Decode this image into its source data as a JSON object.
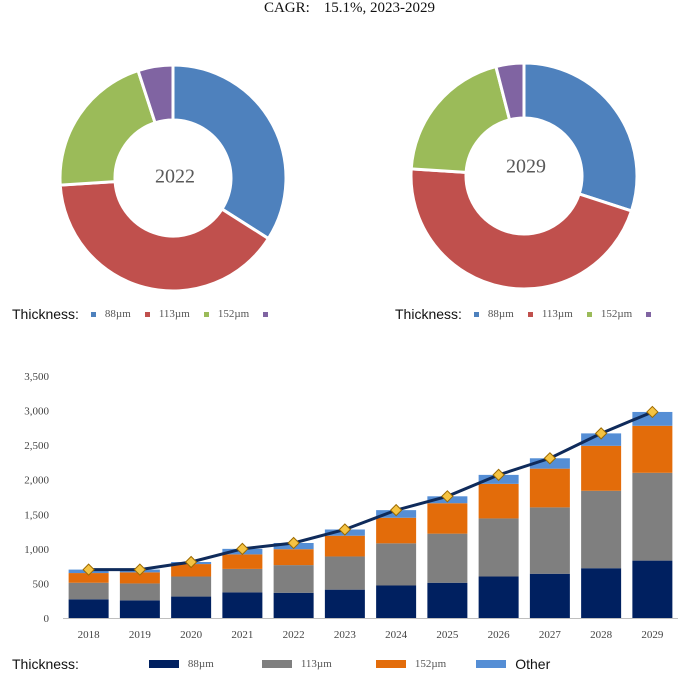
{
  "headline": {
    "label": "CAGR:",
    "value": "15.1%, 2023-2029"
  },
  "chart_data": [
    {
      "type": "pie",
      "name": "share-2022",
      "title": "2022",
      "categories": [
        "88µm",
        "113µm",
        "152µm",
        "Other"
      ],
      "values": [
        34,
        40,
        21,
        5
      ],
      "colors": [
        "#4E81BD",
        "#C0504D",
        "#9BBB59",
        "#8064A2"
      ]
    },
    {
      "type": "pie",
      "name": "share-2029",
      "title": "2029",
      "categories": [
        "88µm",
        "113µm",
        "152µm",
        "Other"
      ],
      "values": [
        30,
        46,
        20,
        4
      ],
      "colors": [
        "#4E81BD",
        "#C0504D",
        "#9BBB59",
        "#8064A2"
      ]
    },
    {
      "type": "bar",
      "name": "volume-stacked",
      "stacked": true,
      "categories": [
        "2018",
        "2019",
        "2020",
        "2021",
        "2022",
        "2023",
        "2024",
        "2025",
        "2026",
        "2027",
        "2028",
        "2029"
      ],
      "series": [
        {
          "name": "88µm",
          "color": "#002060",
          "values": [
            270,
            255,
            310,
            370,
            365,
            410,
            470,
            510,
            600,
            640,
            720,
            830
          ]
        },
        {
          "name": "113µm",
          "color": "#7F7F7F",
          "values": [
            240,
            245,
            290,
            340,
            400,
            480,
            610,
            710,
            840,
            960,
            1120,
            1270
          ]
        },
        {
          "name": "152µm",
          "color": "#E36C0A",
          "values": [
            140,
            160,
            180,
            210,
            230,
            300,
            370,
            440,
            500,
            560,
            650,
            680
          ]
        },
        {
          "name": "Other",
          "color": "#558ED5",
          "values": [
            50,
            40,
            30,
            80,
            90,
            90,
            110,
            100,
            130,
            150,
            180,
            200
          ]
        }
      ],
      "line": {
        "name": "Total",
        "color": "#0F2B5B",
        "marker_color": "#F5C342",
        "values": [
          700,
          700,
          810,
          1000,
          1085,
          1280,
          1560,
          1760,
          2070,
          2310,
          2670,
          2980
        ]
      },
      "y_ticks": [
        "0",
        "500",
        "1,000",
        "1,500",
        "2,000",
        "2,500",
        "3,000",
        "3,500"
      ],
      "ylim": [
        0,
        3500
      ],
      "xlabel": "",
      "ylabel": ""
    }
  ],
  "legends": {
    "top_left": {
      "title": "Thickness:",
      "items": [
        "88µm",
        "113µm",
        "152µm",
        ""
      ]
    },
    "top_right": {
      "title": "Thickness:",
      "items": [
        "88µm",
        "113µm",
        "152µm",
        ""
      ]
    },
    "bottom": {
      "title": "Thickness:",
      "items": [
        "88µm",
        "113µm",
        "152µm",
        "Other"
      ]
    }
  }
}
